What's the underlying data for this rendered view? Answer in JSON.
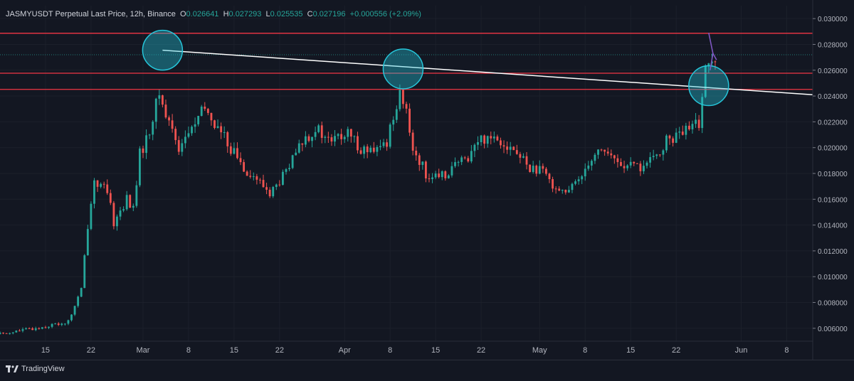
{
  "header": {
    "symbol": "JASMYUSDT Perpetual Last Price, 12h, Binance",
    "open_label": "O",
    "open": "0.026641",
    "high_label": "H",
    "high": "0.027293",
    "low_label": "L",
    "low": "0.025535",
    "close_label": "C",
    "close": "0.027196",
    "change": "+0.000556 (+2.09%)"
  },
  "brand": {
    "name": "TradingView"
  },
  "colors": {
    "up": "#26a69a",
    "down": "#ef5350",
    "level": "#f23645",
    "trend": "#ffffff",
    "circle": "#26c6da",
    "arrow": "#7e57c2",
    "background": "#131722"
  },
  "chart_data": {
    "type": "candlestick",
    "interval": "12h",
    "x_axis": {
      "start": "2024-02-08",
      "end": "2024-06-12",
      "tick_labels": [
        {
          "date": "2024-02-15",
          "label": "15"
        },
        {
          "date": "2024-02-22",
          "label": "22"
        },
        {
          "date": "2024-03-01",
          "label": "Mar"
        },
        {
          "date": "2024-03-08",
          "label": "8"
        },
        {
          "date": "2024-03-15",
          "label": "15"
        },
        {
          "date": "2024-03-22",
          "label": "22"
        },
        {
          "date": "2024-04-01",
          "label": "Apr"
        },
        {
          "date": "2024-04-08",
          "label": "8"
        },
        {
          "date": "2024-04-15",
          "label": "15"
        },
        {
          "date": "2024-04-22",
          "label": "22"
        },
        {
          "date": "2024-05-01",
          "label": "May"
        },
        {
          "date": "2024-05-08",
          "label": "8"
        },
        {
          "date": "2024-05-15",
          "label": "15"
        },
        {
          "date": "2024-05-22",
          "label": "22"
        },
        {
          "date": "2024-06-01",
          "label": "Jun"
        },
        {
          "date": "2024-06-08",
          "label": "8"
        }
      ]
    },
    "y_axis": {
      "range": [
        0.005,
        0.031
      ],
      "ticks": [
        "0.030000",
        "0.028000",
        "0.026000",
        "0.024000",
        "0.022000",
        "0.020000",
        "0.018000",
        "0.016000",
        "0.014000",
        "0.012000",
        "0.010000",
        "0.008000",
        "0.006000"
      ]
    },
    "price_levels": [
      {
        "value": 0.028862,
        "label": "0.028862"
      },
      {
        "value": 0.025768,
        "label": "0.025768"
      },
      {
        "value": 0.024515,
        "label": "0.024515"
      }
    ],
    "last_price": {
      "value": 0.027196,
      "label": "0.027196"
    },
    "trendline": {
      "from": {
        "date": "2024-03-04",
        "value": 0.02755
      },
      "to": {
        "date": "2024-06-12",
        "value": 0.0241
      }
    },
    "highlight_circles": [
      {
        "date": "2024-03-04",
        "value": 0.02755
      },
      {
        "date": "2024-04-10",
        "value": 0.0261
      },
      {
        "date": "2024-05-27",
        "value": 0.0248
      }
    ],
    "price_path": [
      [
        "2024-02-08",
        0.00555
      ],
      [
        "2024-02-14",
        0.006
      ],
      [
        "2024-02-19",
        0.0065
      ],
      [
        "2024-02-21",
        0.009
      ],
      [
        "2024-02-22",
        0.014
      ],
      [
        "2024-02-23",
        0.0175
      ],
      [
        "2024-02-25",
        0.0165
      ],
      [
        "2024-02-26",
        0.0142
      ],
      [
        "2024-02-28",
        0.016
      ],
      [
        "2024-02-29",
        0.0152
      ],
      [
        "2024-03-01",
        0.0195
      ],
      [
        "2024-03-02",
        0.0205
      ],
      [
        "2024-03-04",
        0.0242
      ],
      [
        "2024-03-05",
        0.0225
      ],
      [
        "2024-03-06",
        0.0215
      ],
      [
        "2024-03-07",
        0.02
      ],
      [
        "2024-03-09",
        0.0215
      ],
      [
        "2024-03-11",
        0.023
      ],
      [
        "2024-03-13",
        0.0215
      ],
      [
        "2024-03-15",
        0.02
      ],
      [
        "2024-03-17",
        0.0185
      ],
      [
        "2024-03-19",
        0.0175
      ],
      [
        "2024-03-21",
        0.0165
      ],
      [
        "2024-03-22",
        0.017
      ],
      [
        "2024-03-24",
        0.0185
      ],
      [
        "2024-03-26",
        0.0205
      ],
      [
        "2024-03-28",
        0.0215
      ],
      [
        "2024-03-30",
        0.0205
      ],
      [
        "2024-04-02",
        0.021
      ],
      [
        "2024-04-04",
        0.02
      ],
      [
        "2024-04-06",
        0.0195
      ],
      [
        "2024-04-08",
        0.0205
      ],
      [
        "2024-04-09",
        0.0225
      ],
      [
        "2024-04-10",
        0.0245
      ],
      [
        "2024-04-11",
        0.0225
      ],
      [
        "2024-04-12",
        0.02
      ],
      [
        "2024-04-14",
        0.018
      ],
      [
        "2024-04-16",
        0.0175
      ],
      [
        "2024-04-18",
        0.0185
      ],
      [
        "2024-04-20",
        0.019
      ],
      [
        "2024-04-22",
        0.0205
      ],
      [
        "2024-04-24",
        0.021
      ],
      [
        "2024-04-26",
        0.0205
      ],
      [
        "2024-04-28",
        0.0195
      ],
      [
        "2024-04-30",
        0.0185
      ],
      [
        "2024-05-02",
        0.018
      ],
      [
        "2024-05-04",
        0.017
      ],
      [
        "2024-05-06",
        0.0165
      ],
      [
        "2024-05-08",
        0.018
      ],
      [
        "2024-05-09",
        0.019
      ],
      [
        "2024-05-11",
        0.02
      ],
      [
        "2024-05-13",
        0.019
      ],
      [
        "2024-05-15",
        0.0185
      ],
      [
        "2024-05-17",
        0.0185
      ],
      [
        "2024-05-19",
        0.019
      ],
      [
        "2024-05-21",
        0.0205
      ],
      [
        "2024-05-23",
        0.021
      ],
      [
        "2024-05-25",
        0.0215
      ],
      [
        "2024-05-26",
        0.022
      ],
      [
        "2024-05-27",
        0.026
      ],
      [
        "2024-05-28",
        0.0272
      ]
    ]
  }
}
